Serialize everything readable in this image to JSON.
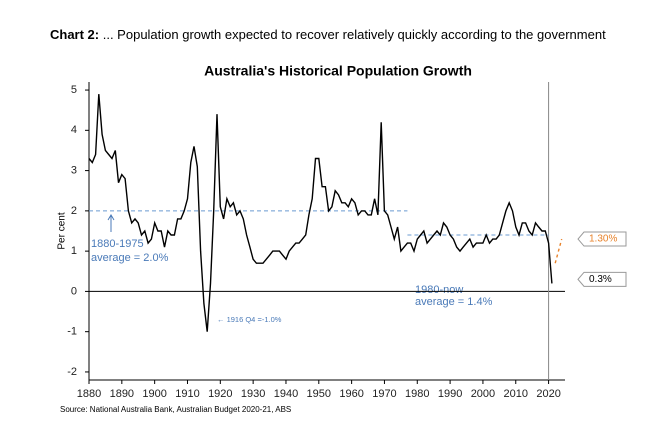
{
  "header": {
    "label": "Chart 2:",
    "text": " ... Population growth expected to recover relatively quickly according to the government"
  },
  "chart_data": {
    "type": "line",
    "title": "Australia's Historical Population Growth",
    "y_label": "Per cent",
    "source": "Source: National Australia Bank, Australian Budget 2020-21, ABS",
    "xlim": [
      1880,
      2025
    ],
    "ylim": [
      -2.2,
      5.2
    ],
    "xticks": [
      1880,
      1890,
      1900,
      1910,
      1920,
      1930,
      1940,
      1950,
      1960,
      1970,
      1980,
      1990,
      2000,
      2010,
      2020
    ],
    "yticks": [
      -2,
      -1,
      0,
      1,
      2,
      3,
      4,
      5
    ],
    "color": "#000000",
    "x": [
      1880,
      1881,
      1882,
      1883,
      1884,
      1885,
      1886,
      1887,
      1888,
      1889,
      1890,
      1891,
      1892,
      1893,
      1894,
      1895,
      1896,
      1897,
      1898,
      1899,
      1900,
      1901,
      1902,
      1903,
      1904,
      1905,
      1906,
      1907,
      1908,
      1909,
      1910,
      1911,
      1912,
      1913,
      1914,
      1915,
      1916,
      1917,
      1918,
      1919,
      1920,
      1921,
      1922,
      1923,
      1924,
      1925,
      1926,
      1927,
      1928,
      1929,
      1930,
      1931,
      1932,
      1933,
      1934,
      1935,
      1936,
      1937,
      1938,
      1939,
      1940,
      1941,
      1942,
      1943,
      1944,
      1945,
      1946,
      1947,
      1948,
      1949,
      1950,
      1951,
      1952,
      1953,
      1954,
      1955,
      1956,
      1957,
      1958,
      1959,
      1960,
      1961,
      1962,
      1963,
      1964,
      1965,
      1966,
      1967,
      1968,
      1969,
      1970,
      1971,
      1972,
      1973,
      1974,
      1975,
      1976,
      1977,
      1978,
      1979,
      1980,
      1981,
      1982,
      1983,
      1984,
      1985,
      1986,
      1987,
      1988,
      1989,
      1990,
      1991,
      1992,
      1993,
      1994,
      1995,
      1996,
      1997,
      1998,
      1999,
      2000,
      2001,
      2002,
      2003,
      2004,
      2005,
      2006,
      2007,
      2008,
      2009,
      2010,
      2011,
      2012,
      2013,
      2014,
      2015,
      2016,
      2017,
      2018,
      2019,
      2020,
      2021
    ],
    "values": [
      3.3,
      3.2,
      3.4,
      4.9,
      3.9,
      3.5,
      3.4,
      3.3,
      3.5,
      2.7,
      2.9,
      2.8,
      2.0,
      1.7,
      1.8,
      1.7,
      1.4,
      1.5,
      1.2,
      1.3,
      1.7,
      1.5,
      1.5,
      1.1,
      1.5,
      1.4,
      1.4,
      1.8,
      1.8,
      2.0,
      2.3,
      3.2,
      3.6,
      3.1,
      1.0,
      -0.3,
      -1.0,
      0.2,
      2.0,
      4.4,
      2.1,
      1.8,
      2.3,
      2.1,
      2.2,
      1.9,
      2.0,
      1.8,
      1.4,
      1.1,
      0.8,
      0.7,
      0.7,
      0.7,
      0.8,
      0.9,
      1.0,
      1.0,
      1.0,
      0.9,
      0.8,
      1.0,
      1.1,
      1.2,
      1.2,
      1.3,
      1.4,
      1.9,
      2.3,
      3.3,
      3.3,
      2.6,
      2.6,
      2.0,
      2.1,
      2.5,
      2.4,
      2.2,
      2.2,
      2.1,
      2.3,
      2.2,
      1.9,
      2.0,
      2.0,
      1.9,
      1.9,
      2.3,
      1.9,
      4.2,
      2.0,
      1.9,
      1.6,
      1.3,
      1.6,
      1.0,
      1.1,
      1.2,
      1.2,
      1.0,
      1.3,
      1.4,
      1.5,
      1.2,
      1.3,
      1.4,
      1.5,
      1.4,
      1.7,
      1.6,
      1.4,
      1.3,
      1.1,
      1.0,
      1.1,
      1.2,
      1.3,
      1.1,
      1.2,
      1.2,
      1.2,
      1.4,
      1.2,
      1.3,
      1.3,
      1.4,
      1.7,
      2.0,
      2.2,
      2.0,
      1.6,
      1.4,
      1.7,
      1.7,
      1.5,
      1.4,
      1.7,
      1.6,
      1.5,
      1.5,
      1.2,
      0.2
    ],
    "projection": {
      "color": "#e8822a",
      "x": [
        2022,
        2024
      ],
      "values": [
        0.7,
        1.3
      ]
    },
    "vline": 2020,
    "averages": [
      {
        "value": 2.0,
        "x": [
          1880,
          1977
        ],
        "lines": [
          "1880-1975",
          "average = 2.0%"
        ]
      },
      {
        "value": 1.4,
        "x": [
          1977,
          2020
        ],
        "lines": [
          "1980-now",
          "average = 1.4%"
        ]
      }
    ],
    "annotation": "← 1916 Q4 =-1.0%",
    "callouts": [
      {
        "value": 1.3,
        "label": "1.30%"
      },
      {
        "value": 0.3,
        "label": "0.3%"
      }
    ]
  }
}
